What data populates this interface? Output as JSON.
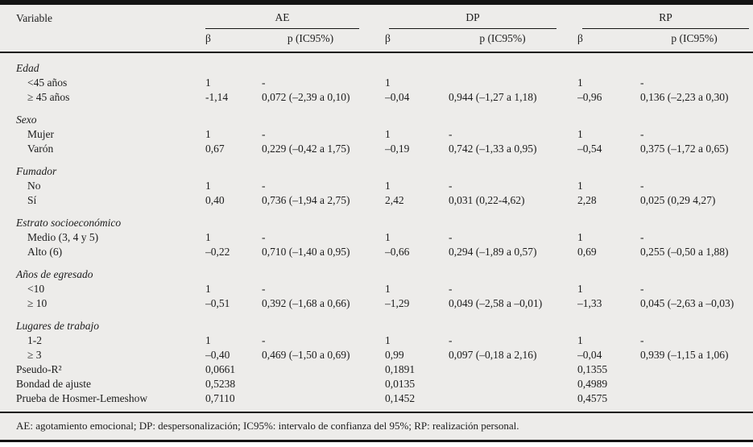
{
  "colors": {
    "background": "#edecea",
    "text": "#1c1c1c",
    "rule": "#141414"
  },
  "table": {
    "variable_header": "Variable",
    "groups": [
      {
        "label": "AE",
        "beta": "β",
        "p": "p (IC95%)"
      },
      {
        "label": "DP",
        "beta": "β",
        "p": "p (IC95%)"
      },
      {
        "label": "RP",
        "beta": "β",
        "p": "p (IC95%)"
      }
    ],
    "sections": [
      {
        "category": "Edad",
        "rows": [
          {
            "label": "<45 años",
            "cells": [
              "1",
              "-",
              "1",
              "",
              "1",
              "-"
            ]
          },
          {
            "label": "≥ 45 años",
            "cells": [
              "-1,14",
              "0,072 (–2,39 a 0,10)",
              "–0,04",
              "0,944 (–1,27 a 1,18)",
              "–0,96",
              "0,136 (–2,23 a 0,30)"
            ]
          }
        ]
      },
      {
        "category": "Sexo",
        "rows": [
          {
            "label": "Mujer",
            "cells": [
              "1",
              "-",
              "1",
              "-",
              "1",
              "-"
            ]
          },
          {
            "label": "Varón",
            "cells": [
              "0,67",
              "0,229 (–0,42 a 1,75)",
              "–0,19",
              "0,742 (–1,33 a 0,95)",
              "–0,54",
              "0,375 (–1,72 a 0,65)"
            ]
          }
        ]
      },
      {
        "category": "Fumador",
        "rows": [
          {
            "label": "No",
            "cells": [
              "1",
              "-",
              "1",
              "-",
              "1",
              "-"
            ]
          },
          {
            "label": "Sí",
            "cells": [
              "0,40",
              "0,736 (–1,94 a 2,75)",
              "2,42",
              "0,031 (0,22-4,62)",
              "2,28",
              "0,025 (0,29 4,27)"
            ]
          }
        ]
      },
      {
        "category": "Estrato socioeconómico",
        "rows": [
          {
            "label": "Medio (3, 4 y 5)",
            "cells": [
              "1",
              "-",
              "1",
              "-",
              "1",
              "-"
            ]
          },
          {
            "label": "Alto (6)",
            "cells": [
              "–0,22",
              "0,710 (–1,40 a 0,95)",
              "–0,66",
              "0,294 (–1,89 a 0,57)",
              "0,69",
              "0,255 (–0,50 a 1,88)"
            ]
          }
        ]
      },
      {
        "category": "Años de egresado",
        "rows": [
          {
            "label": "<10",
            "cells": [
              "1",
              "-",
              "1",
              "-",
              "1",
              "-"
            ]
          },
          {
            "label": "≥ 10",
            "cells": [
              "–0,51",
              "0,392 (–1,68 a 0,66)",
              "–1,29",
              "0,049 (–2,58 a –0,01)",
              "–1,33",
              "0,045 (–2,63 a –0,03)"
            ]
          }
        ]
      },
      {
        "category": "Lugares de trabajo",
        "rows": [
          {
            "label": "1-2",
            "cells": [
              "1",
              "-",
              "1",
              "-",
              "1",
              "-"
            ]
          },
          {
            "label": "≥ 3",
            "cells": [
              "–0,40",
              "0,469 (–1,50 a 0,69)",
              "0,99",
              "0,097 (–0,18 a 2,16)",
              "–0,04",
              "0,939 (–1,15 a 1,06)"
            ]
          }
        ]
      }
    ],
    "stats": [
      {
        "label": "Pseudo-R²",
        "cells": [
          "0,0661",
          "",
          "0,1891",
          "",
          "0,1355",
          ""
        ]
      },
      {
        "label": "Bondad de ajuste",
        "cells": [
          "0,5238",
          "",
          "0,0135",
          "",
          "0,4989",
          ""
        ]
      },
      {
        "label": "Prueba de Hosmer-Lemeshow",
        "cells": [
          "0,7110",
          "",
          "0,1452",
          "",
          "0,4575",
          ""
        ]
      }
    ],
    "footnote": "AE: agotamiento emocional; DP: despersonalización; IC95%: intervalo de confianza del 95%; RP: realización personal."
  }
}
